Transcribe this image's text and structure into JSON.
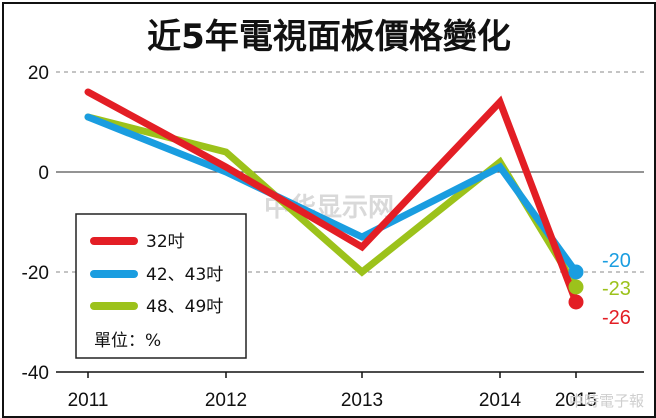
{
  "chart_data": {
    "type": "line",
    "title": "近5年電視面板價格變化",
    "x": [
      "2011",
      "2012",
      "2013",
      "2014",
      "2015"
    ],
    "ylim": [
      -40,
      20
    ],
    "yticks": [
      20,
      0,
      -20,
      -40
    ],
    "grid": true,
    "legend_position": "lower-left",
    "unit_label": "單位：%",
    "series": [
      {
        "name": "32吋",
        "values": [
          16,
          1,
          -15,
          14,
          -26
        ],
        "color": "#e31e25"
      },
      {
        "name": "42、43吋",
        "values": [
          11,
          0,
          -13,
          1,
          -20
        ],
        "color": "#1a9de0"
      },
      {
        "name": "48、49吋",
        "values": [
          11,
          4,
          -20,
          2,
          -23
        ],
        "color": "#9cc21b"
      }
    ],
    "end_labels": [
      "-20",
      "-23",
      "-26"
    ],
    "end_label_colors": [
      "#1a9de0",
      "#9cc21b",
      "#e31e25"
    ]
  },
  "watermarks": {
    "center": "中华显示网",
    "corner": "中時電子報"
  }
}
